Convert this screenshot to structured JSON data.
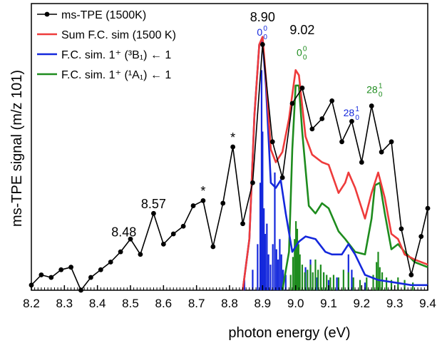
{
  "chart_data": {
    "type": "line",
    "xlabel": "photon energy (eV)",
    "ylabel": "ms-TPE signal (m/z 101)",
    "xlim": [
      8.2,
      9.4
    ],
    "ylim": [
      0,
      1.12
    ],
    "x_ticks": [
      "8.2",
      "8.3",
      "8.4",
      "8.5",
      "8.6",
      "8.7",
      "8.8",
      "8.9",
      "9.0",
      "9.1",
      "9.2",
      "9.3",
      "9.4"
    ],
    "legend_position": "top-left",
    "colors": {
      "exp": "#000000",
      "sum": "#ee3b3b",
      "triplet": "#1428dc",
      "singlet": "#1e8c1e"
    },
    "series": [
      {
        "name": "ms-TPE (1500K)",
        "style": "line-markers",
        "x": [
          8.2,
          8.23,
          8.26,
          8.29,
          8.32,
          8.35,
          8.38,
          8.41,
          8.44,
          8.47,
          8.5,
          8.53,
          8.57,
          8.6,
          8.63,
          8.66,
          8.69,
          8.72,
          8.75,
          8.78,
          8.81,
          8.84,
          8.87,
          8.9,
          8.93,
          8.96,
          8.99,
          9.02,
          9.05,
          9.08,
          9.11,
          9.14,
          9.17,
          9.2,
          9.23,
          9.26,
          9.29,
          9.32,
          9.35,
          9.38,
          9.4
        ],
        "y": [
          0.02,
          0.06,
          0.05,
          0.08,
          0.09,
          0.0,
          0.05,
          0.08,
          0.11,
          0.15,
          0.2,
          0.14,
          0.3,
          0.18,
          0.22,
          0.25,
          0.33,
          0.35,
          0.17,
          0.34,
          0.56,
          0.26,
          0.42,
          0.96,
          0.58,
          0.44,
          0.73,
          0.79,
          0.63,
          0.67,
          0.74,
          0.58,
          0.66,
          0.5,
          0.72,
          0.54,
          0.58,
          0.24,
          0.06,
          0.21,
          0.32
        ]
      },
      {
        "name": "Sum F.C. sim (1500 K)",
        "style": "line",
        "x": [
          8.84,
          8.86,
          8.875,
          8.89,
          8.9,
          8.91,
          8.925,
          8.94,
          8.96,
          8.98,
          9.0,
          9.01,
          9.03,
          9.05,
          9.08,
          9.1,
          9.13,
          9.15,
          9.16,
          9.18,
          9.21,
          9.23,
          9.25,
          9.27,
          9.29,
          9.31,
          9.33,
          9.36,
          9.4
        ],
        "y": [
          0.0,
          0.2,
          0.68,
          0.96,
          0.99,
          0.83,
          0.55,
          0.5,
          0.54,
          0.67,
          0.86,
          0.84,
          0.6,
          0.53,
          0.5,
          0.49,
          0.38,
          0.42,
          0.46,
          0.4,
          0.28,
          0.38,
          0.46,
          0.36,
          0.22,
          0.2,
          0.14,
          0.12,
          0.1
        ]
      },
      {
        "name": "F.C. sim. 1⁺ (³B₁) ← 1",
        "style": "line",
        "x": [
          8.84,
          8.86,
          8.875,
          8.89,
          8.9,
          8.91,
          8.925,
          8.94,
          8.955,
          8.97,
          8.99,
          9.01,
          9.03,
          9.06,
          9.09,
          9.11,
          9.14,
          9.16,
          9.18,
          9.21,
          9.25,
          9.3,
          9.35,
          9.4
        ],
        "y": [
          0.0,
          0.2,
          0.68,
          0.96,
          0.98,
          0.8,
          0.42,
          0.4,
          0.43,
          0.3,
          0.15,
          0.19,
          0.21,
          0.2,
          0.15,
          0.14,
          0.14,
          0.18,
          0.14,
          0.06,
          0.04,
          0.03,
          0.02,
          0.02
        ]
      },
      {
        "name": "F.C. sim. 1⁺ (¹A₁) ← 1",
        "style": "line",
        "x": [
          8.96,
          8.98,
          8.99,
          9.0,
          9.01,
          9.02,
          9.04,
          9.06,
          9.08,
          9.1,
          9.13,
          9.15,
          9.18,
          9.21,
          9.23,
          9.24,
          9.255,
          9.27,
          9.29,
          9.31,
          9.33,
          9.36,
          9.4
        ],
        "y": [
          0.0,
          0.15,
          0.55,
          0.8,
          0.8,
          0.62,
          0.33,
          0.3,
          0.34,
          0.32,
          0.23,
          0.2,
          0.15,
          0.14,
          0.28,
          0.41,
          0.42,
          0.3,
          0.16,
          0.18,
          0.15,
          0.11,
          0.09
        ]
      }
    ],
    "annotations": [
      {
        "text": "8.48",
        "x": 8.48,
        "y": 0.21,
        "kind": "energy"
      },
      {
        "text": "8.57",
        "x": 8.57,
        "y": 0.32,
        "kind": "energy"
      },
      {
        "text": "*",
        "x": 8.72,
        "y": 0.37,
        "kind": "marker"
      },
      {
        "text": "*",
        "x": 8.81,
        "y": 0.58,
        "kind": "marker"
      },
      {
        "text": "8.90",
        "x": 8.9,
        "y": 1.05,
        "kind": "energy"
      },
      {
        "text": "9.02",
        "x": 9.02,
        "y": 1.0,
        "kind": "energy"
      },
      {
        "text": "0",
        "sup": "0",
        "sub": "0",
        "x": 8.9,
        "y": 0.995,
        "kind": "assign-blue"
      },
      {
        "text": "0",
        "sup": "0",
        "sub": "0",
        "x": 9.02,
        "y": 0.915,
        "kind": "assign-green"
      },
      {
        "text": "28",
        "sup": "1",
        "sub": "0",
        "x": 9.17,
        "y": 0.68,
        "kind": "assign-blue"
      },
      {
        "text": "28",
        "sup": "1",
        "sub": "0",
        "x": 9.24,
        "y": 0.77,
        "kind": "assign-green"
      }
    ],
    "stick_spectra": [
      {
        "name": "triplet sticks",
        "color": "#1428dc",
        "lines": [
          [
            8.845,
            0.04
          ],
          [
            8.87,
            0.08
          ],
          [
            8.885,
            0.18
          ],
          [
            8.893,
            0.42
          ],
          [
            8.897,
            0.86
          ],
          [
            8.9,
            0.62
          ],
          [
            8.904,
            0.32
          ],
          [
            8.908,
            0.22
          ],
          [
            8.913,
            0.26
          ],
          [
            8.918,
            0.14
          ],
          [
            8.924,
            0.1
          ],
          [
            8.931,
            0.18
          ],
          [
            8.937,
            0.46
          ],
          [
            8.942,
            0.16
          ],
          [
            8.947,
            0.12
          ],
          [
            8.952,
            0.2
          ],
          [
            8.957,
            0.14
          ],
          [
            8.962,
            0.08
          ],
          [
            8.97,
            0.06
          ],
          [
            9.01,
            0.06
          ],
          [
            9.03,
            0.09
          ],
          [
            9.045,
            0.12
          ],
          [
            9.065,
            0.05
          ],
          [
            9.085,
            0.07
          ],
          [
            9.1,
            0.04
          ],
          [
            9.125,
            0.05
          ],
          [
            9.16,
            0.14
          ],
          [
            9.17,
            0.08
          ],
          [
            9.21,
            0.03
          ]
        ]
      },
      {
        "name": "singlet sticks",
        "color": "#1e8c1e",
        "lines": [
          [
            8.985,
            0.06
          ],
          [
            8.992,
            0.13
          ],
          [
            8.997,
            0.2
          ],
          [
            9.001,
            0.27
          ],
          [
            9.005,
            0.24
          ],
          [
            9.009,
            0.18
          ],
          [
            9.013,
            0.14
          ],
          [
            9.02,
            0.1
          ],
          [
            9.028,
            0.07
          ],
          [
            9.036,
            0.08
          ],
          [
            9.045,
            0.1
          ],
          [
            9.052,
            0.07
          ],
          [
            9.06,
            0.12
          ],
          [
            9.068,
            0.08
          ],
          [
            9.076,
            0.1
          ],
          [
            9.085,
            0.07
          ],
          [
            9.094,
            0.06
          ],
          [
            9.105,
            0.05
          ],
          [
            9.115,
            0.06
          ],
          [
            9.13,
            0.05
          ],
          [
            9.145,
            0.08
          ],
          [
            9.16,
            0.07
          ],
          [
            9.175,
            0.05
          ],
          [
            9.195,
            0.04
          ],
          [
            9.215,
            0.05
          ],
          [
            9.235,
            0.06
          ],
          [
            9.245,
            0.11
          ],
          [
            9.25,
            0.15
          ],
          [
            9.255,
            0.09
          ],
          [
            9.262,
            0.07
          ],
          [
            9.275,
            0.05
          ],
          [
            9.29,
            0.04
          ],
          [
            9.31,
            0.05
          ],
          [
            9.33,
            0.04
          ],
          [
            9.355,
            0.03
          ]
        ]
      }
    ]
  }
}
